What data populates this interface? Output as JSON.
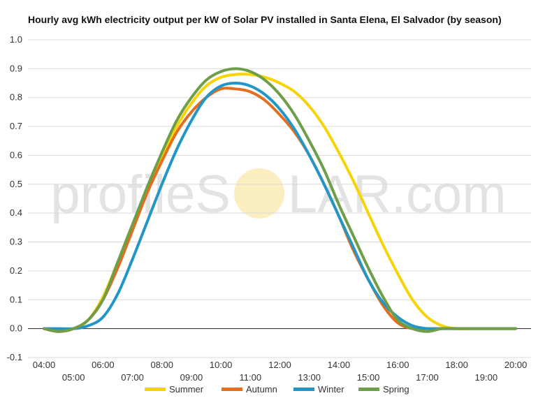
{
  "chart_data": {
    "type": "line",
    "title": "Hourly avg kWh electricity output per kW of Solar PV installed in Santa Elena, El Salvador (by season)",
    "xlabel": "",
    "ylabel": "",
    "x": [
      "04:00",
      "04:30",
      "05:00",
      "05:30",
      "06:00",
      "06:30",
      "07:00",
      "07:30",
      "08:00",
      "08:30",
      "09:00",
      "09:30",
      "10:00",
      "10:30",
      "11:00",
      "11:30",
      "12:00",
      "12:30",
      "13:00",
      "13:30",
      "14:00",
      "14:30",
      "15:00",
      "15:30",
      "16:00",
      "16:30",
      "17:00",
      "17:30",
      "18:00",
      "18:30",
      "19:00",
      "19:30",
      "20:00"
    ],
    "x_tick_labels_upper": [
      "04:00",
      "06:00",
      "08:00",
      "10:00",
      "12:00",
      "14:00",
      "16:00",
      "18:00",
      "20:00"
    ],
    "x_tick_labels_lower": [
      "05:00",
      "07:00",
      "09:00",
      "11:00",
      "13:00",
      "15:00",
      "17:00",
      "19:00"
    ],
    "ylim": [
      -0.1,
      1.0
    ],
    "y_ticks": [
      "-0.1",
      "0.0",
      "0.1",
      "0.2",
      "0.3",
      "0.4",
      "0.5",
      "0.6",
      "0.7",
      "0.8",
      "0.9",
      "1.0"
    ],
    "grid": true,
    "legend": "bottom",
    "series": [
      {
        "name": "Summer",
        "color": "#f7d408",
        "values": [
          0.0,
          -0.01,
          0.0,
          0.03,
          0.11,
          0.23,
          0.36,
          0.48,
          0.6,
          0.7,
          0.78,
          0.84,
          0.87,
          0.88,
          0.88,
          0.87,
          0.85,
          0.82,
          0.77,
          0.7,
          0.61,
          0.51,
          0.4,
          0.29,
          0.19,
          0.1,
          0.04,
          0.01,
          0.0,
          0.0,
          0.0,
          0.0,
          0.0
        ]
      },
      {
        "name": "Autumn",
        "color": "#e46e1e",
        "values": [
          0.0,
          -0.01,
          0.0,
          0.03,
          0.1,
          0.21,
          0.34,
          0.47,
          0.58,
          0.68,
          0.75,
          0.8,
          0.83,
          0.83,
          0.82,
          0.79,
          0.74,
          0.68,
          0.6,
          0.5,
          0.39,
          0.27,
          0.17,
          0.08,
          0.02,
          0.0,
          0.0,
          0.0,
          0.0,
          0.0,
          0.0,
          0.0,
          0.0
        ]
      },
      {
        "name": "Winter",
        "color": "#2196c7",
        "values": [
          0.0,
          0.0,
          0.0,
          0.01,
          0.04,
          0.12,
          0.24,
          0.37,
          0.5,
          0.62,
          0.72,
          0.8,
          0.84,
          0.85,
          0.84,
          0.81,
          0.76,
          0.69,
          0.6,
          0.5,
          0.39,
          0.28,
          0.17,
          0.09,
          0.04,
          0.01,
          0.0,
          0.0,
          0.0,
          0.0,
          0.0,
          0.0,
          0.0
        ]
      },
      {
        "name": "Spring",
        "color": "#6f9e4a",
        "values": [
          0.0,
          -0.01,
          0.0,
          0.03,
          0.1,
          0.23,
          0.36,
          0.49,
          0.61,
          0.72,
          0.8,
          0.86,
          0.89,
          0.9,
          0.89,
          0.86,
          0.81,
          0.74,
          0.65,
          0.55,
          0.43,
          0.32,
          0.21,
          0.11,
          0.03,
          0.0,
          -0.01,
          0.0,
          0.0,
          0.0,
          0.0,
          0.0,
          0.0
        ]
      }
    ]
  },
  "watermark": {
    "text_left": "profileS",
    "text_right": "LAR.com",
    "sun_color": "#fbeec0"
  }
}
